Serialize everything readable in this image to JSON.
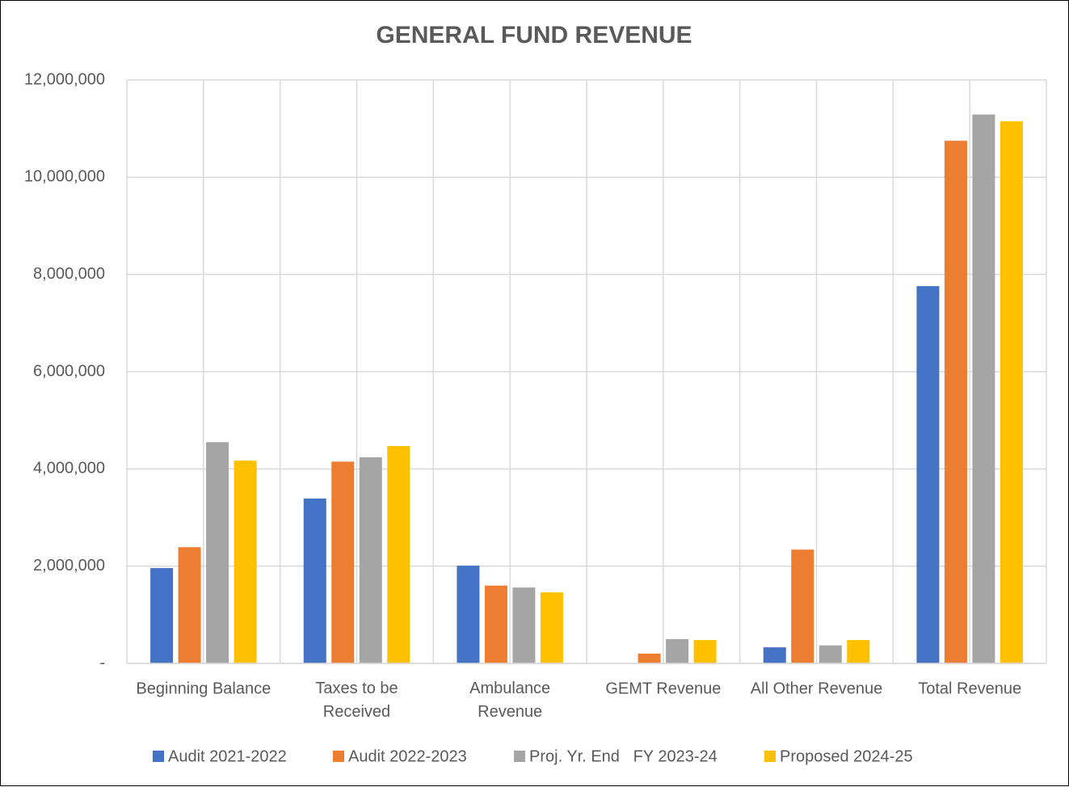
{
  "chart_data": {
    "type": "bar",
    "title": "GENERAL FUND REVENUE",
    "categories": [
      "Beginning Balance",
      "Taxes to be\nReceived",
      "Ambulance\nRevenue",
      "GEMT Revenue",
      "All Other Revenue",
      "Total Revenue"
    ],
    "series": [
      {
        "name": "Audit 2021-2022",
        "color": "#4472c4",
        "values": [
          1960000,
          3390000,
          2010000,
          0,
          330000,
          7760000
        ]
      },
      {
        "name": "Audit 2022-2023",
        "color": "#ed7d31",
        "values": [
          2390000,
          4150000,
          1600000,
          200000,
          2340000,
          10750000
        ]
      },
      {
        "name": "Proj. Yr. End   FY 2023-24",
        "color": "#a5a5a5",
        "values": [
          4550000,
          4240000,
          1560000,
          500000,
          370000,
          11290000
        ]
      },
      {
        "name": "Proposed 2024-25",
        "color": "#ffc000",
        "values": [
          4170000,
          4470000,
          1460000,
          480000,
          480000,
          11150000
        ]
      }
    ],
    "ylim": [
      0,
      12000000
    ],
    "yticks": [
      {
        "value": 0,
        "label": "-"
      },
      {
        "value": 2000000,
        "label": "2,000,000"
      },
      {
        "value": 4000000,
        "label": "4,000,000"
      },
      {
        "value": 6000000,
        "label": "6,000,000"
      },
      {
        "value": 8000000,
        "label": "8,000,000"
      },
      {
        "value": 10000000,
        "label": "10,000,000"
      },
      {
        "value": 12000000,
        "label": "12,000,000"
      }
    ],
    "grid": true,
    "legend": "bottom"
  }
}
